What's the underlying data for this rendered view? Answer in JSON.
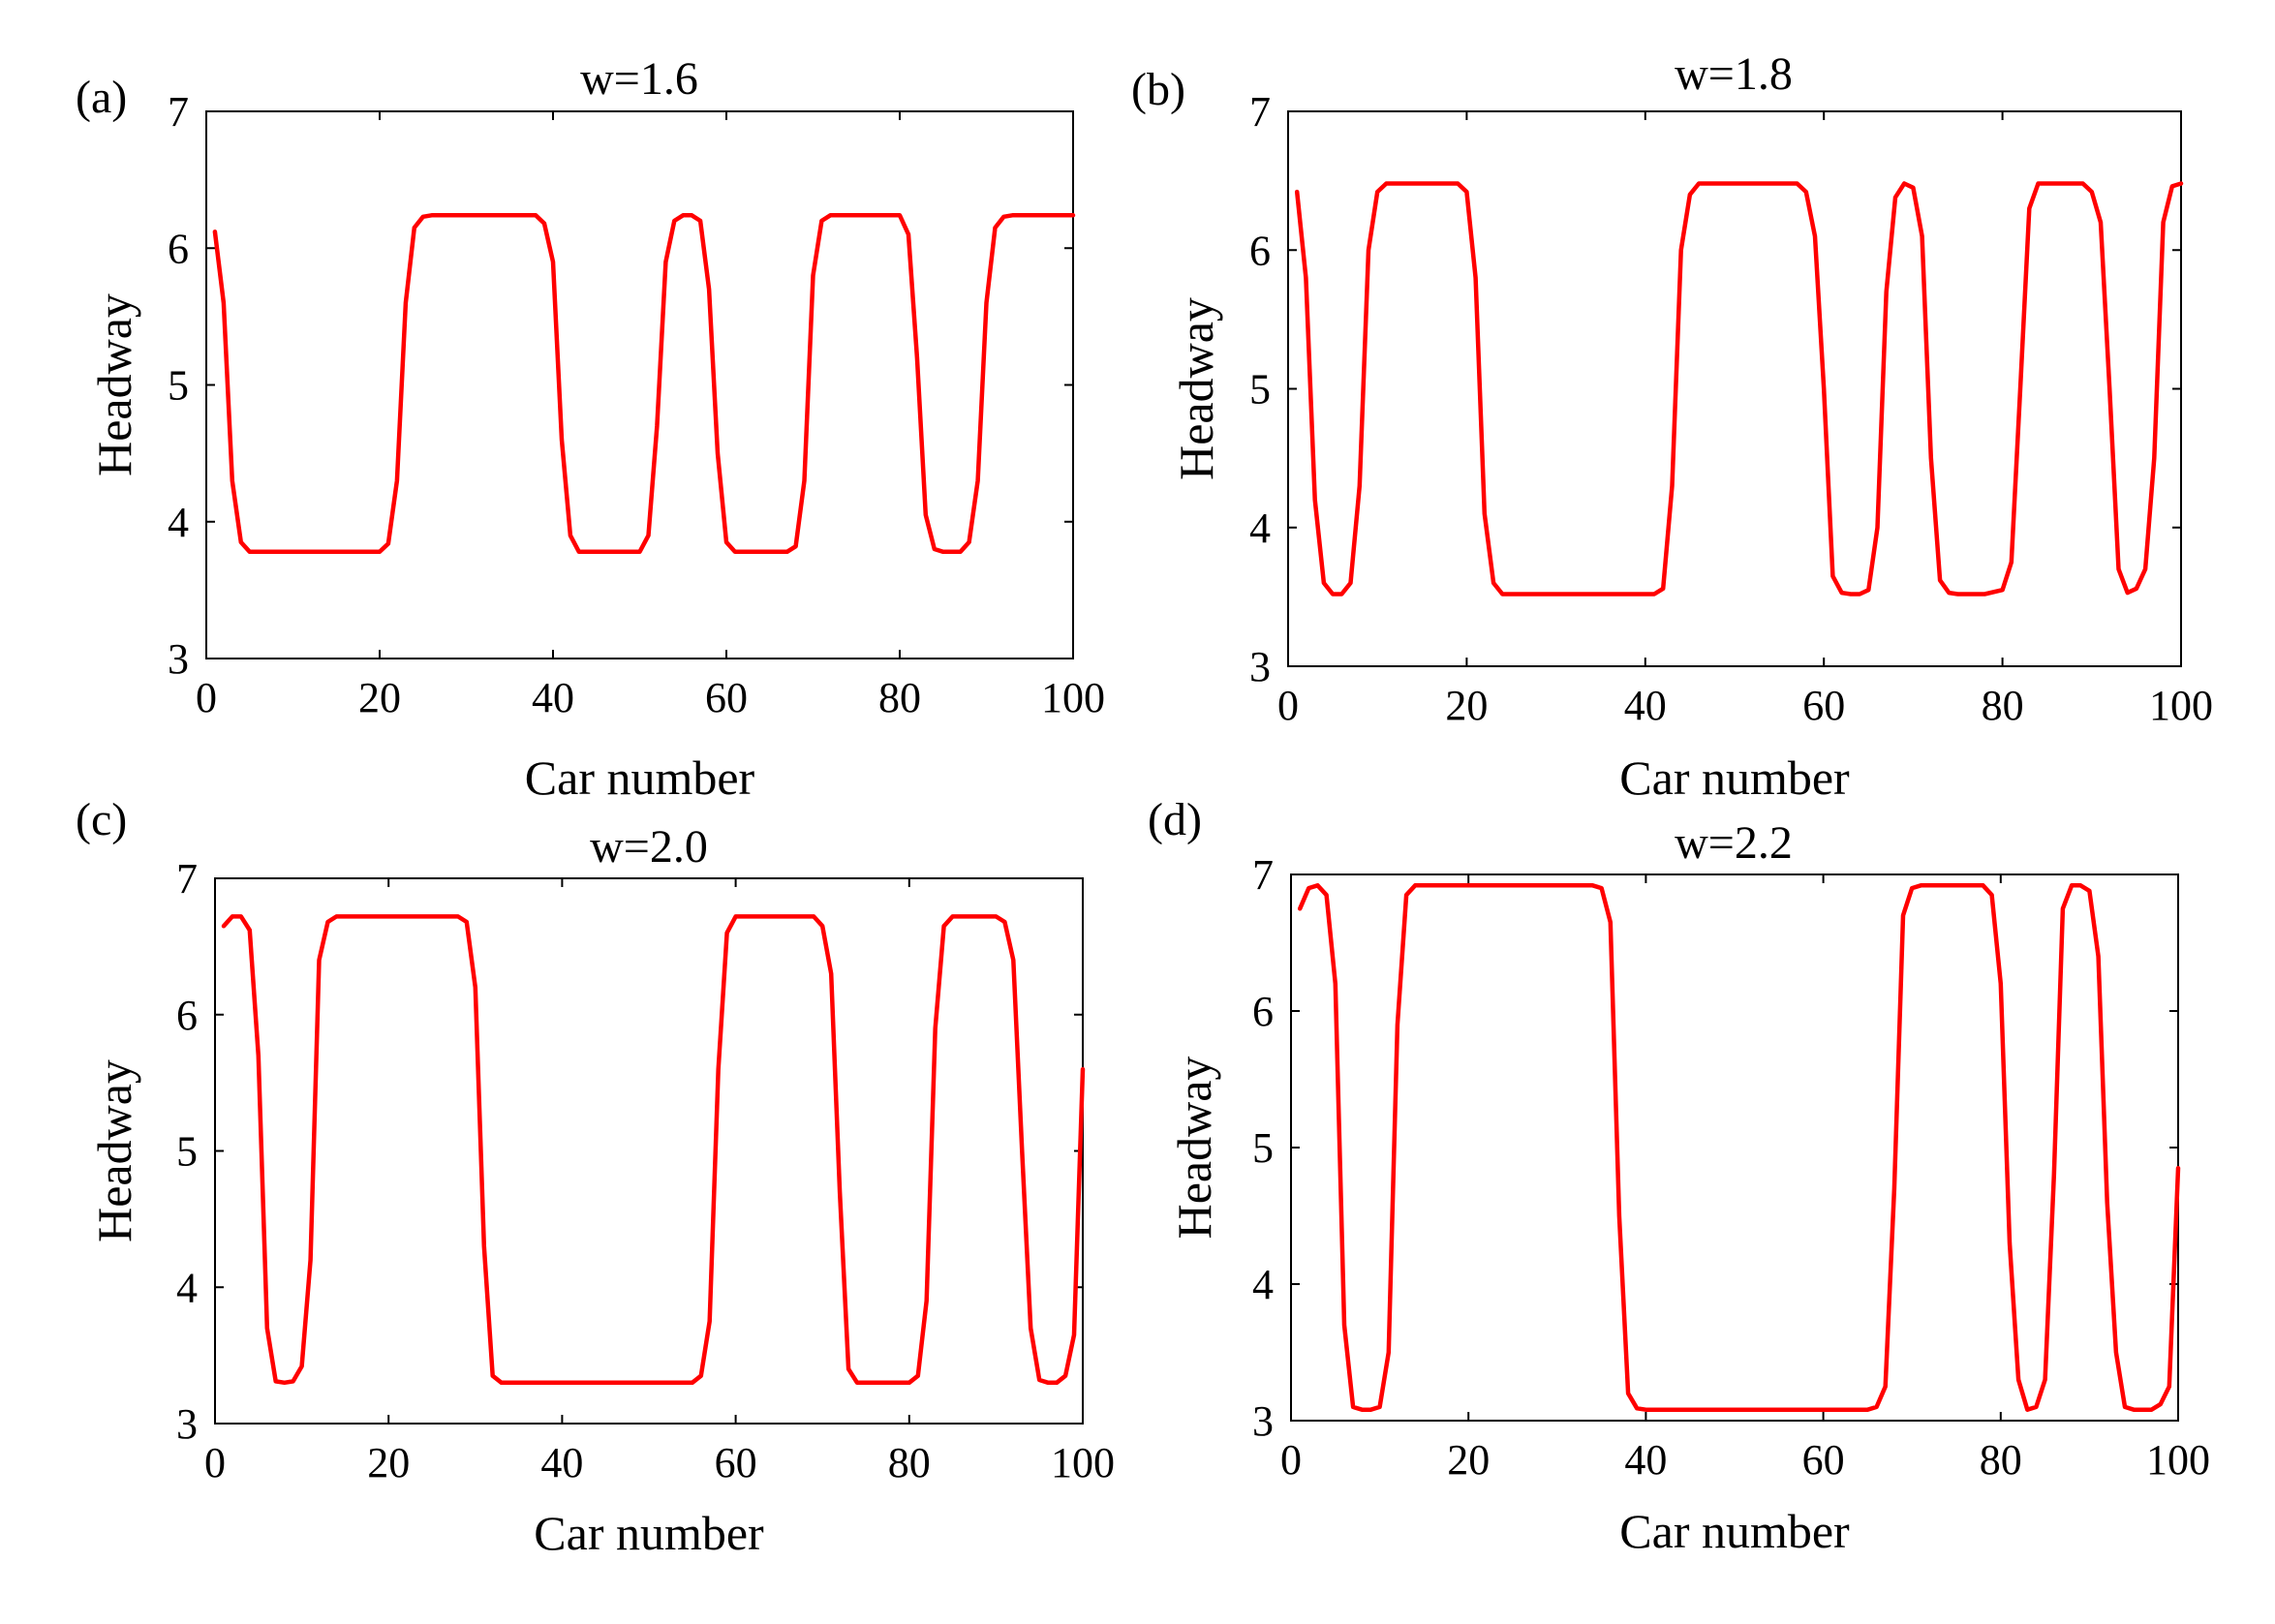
{
  "figure": {
    "line_color": "#ff0000"
  },
  "chart_data": [
    {
      "type": "line",
      "panel_label": "(a)",
      "title": "w=1.6",
      "xlabel": "Car number",
      "ylabel": "Headway",
      "xlim": [
        0,
        100
      ],
      "ylim": [
        3,
        7
      ],
      "xticks": [
        0,
        20,
        40,
        60,
        80,
        100
      ],
      "yticks": [
        3,
        4,
        5,
        6,
        7
      ],
      "xtick_labels": [
        "0",
        "20",
        "40",
        "60",
        "80",
        "100"
      ],
      "ytick_labels": [
        "3",
        "4",
        "5",
        "6",
        "7"
      ],
      "grid": false,
      "series": [
        {
          "name": "headway",
          "x": [
            1,
            2,
            3,
            4,
            5,
            6,
            20,
            21,
            22,
            23,
            24,
            25,
            26,
            38,
            39,
            40,
            41,
            42,
            43,
            44,
            50,
            51,
            52,
            53,
            54,
            55,
            56,
            57,
            58,
            59,
            60,
            61,
            67,
            68,
            69,
            70,
            71,
            72,
            80,
            81,
            82,
            83,
            84,
            85,
            86,
            87,
            88,
            89,
            90,
            91,
            92,
            93,
            100
          ],
          "values": [
            6.12,
            5.6,
            4.3,
            3.85,
            3.78,
            3.78,
            3.78,
            3.84,
            4.3,
            5.6,
            6.15,
            6.23,
            6.24,
            6.24,
            6.18,
            5.9,
            4.6,
            3.9,
            3.78,
            3.78,
            3.78,
            3.9,
            4.7,
            5.9,
            6.2,
            6.24,
            6.24,
            6.2,
            5.7,
            4.5,
            3.85,
            3.78,
            3.78,
            3.82,
            4.3,
            5.8,
            6.2,
            6.24,
            6.24,
            6.1,
            5.2,
            4.05,
            3.8,
            3.78,
            3.78,
            3.78,
            3.85,
            4.3,
            5.6,
            6.15,
            6.23,
            6.24,
            6.24
          ]
        }
      ]
    },
    {
      "type": "line",
      "panel_label": "(b)",
      "title": "w=1.8",
      "xlabel": "Car number",
      "ylabel": "Headway",
      "xlim": [
        0,
        100
      ],
      "ylim": [
        3,
        7
      ],
      "xticks": [
        0,
        20,
        40,
        60,
        80,
        100
      ],
      "yticks": [
        3,
        4,
        5,
        6,
        7
      ],
      "xtick_labels": [
        "0",
        "20",
        "40",
        "60",
        "80",
        "100"
      ],
      "ytick_labels": [
        "3",
        "4",
        "5",
        "6",
        "7"
      ],
      "grid": false,
      "series": [
        {
          "name": "headway",
          "x": [
            1,
            2,
            3,
            4,
            5,
            6,
            7,
            8,
            9,
            10,
            11,
            19,
            20,
            21,
            22,
            23,
            24,
            25,
            41,
            42,
            43,
            44,
            45,
            46,
            57,
            58,
            59,
            60,
            61,
            62,
            63,
            64,
            65,
            66,
            67,
            68,
            69,
            70,
            71,
            72,
            73,
            74,
            75,
            76,
            78,
            80,
            81,
            82,
            83,
            84,
            89,
            90,
            91,
            92,
            93,
            94,
            95,
            96,
            97,
            98,
            99,
            100
          ],
          "values": [
            6.42,
            5.8,
            4.2,
            3.6,
            3.52,
            3.52,
            3.6,
            4.3,
            6.0,
            6.42,
            6.48,
            6.48,
            6.42,
            5.8,
            4.1,
            3.6,
            3.52,
            3.52,
            3.52,
            3.56,
            4.3,
            6.0,
            6.4,
            6.48,
            6.48,
            6.42,
            6.1,
            5.0,
            3.65,
            3.53,
            3.52,
            3.52,
            3.55,
            4.0,
            5.7,
            6.38,
            6.48,
            6.45,
            6.1,
            4.5,
            3.62,
            3.53,
            3.52,
            3.52,
            3.52,
            3.55,
            3.75,
            5.0,
            6.3,
            6.48,
            6.48,
            6.42,
            6.2,
            5.0,
            3.7,
            3.53,
            3.56,
            3.7,
            4.5,
            6.2,
            6.46,
            6.48
          ]
        }
      ]
    },
    {
      "type": "line",
      "panel_label": "(c)",
      "title": "w=2.0",
      "xlabel": "Car number",
      "ylabel": "Headway",
      "xlim": [
        0,
        100
      ],
      "ylim": [
        3,
        7
      ],
      "xticks": [
        0,
        20,
        40,
        60,
        80,
        100
      ],
      "yticks": [
        3,
        4,
        5,
        6,
        7
      ],
      "xtick_labels": [
        "0",
        "20",
        "40",
        "60",
        "80",
        "100"
      ],
      "ytick_labels": [
        "3",
        "4",
        "5",
        "6",
        "7"
      ],
      "grid": false,
      "series": [
        {
          "name": "headway",
          "x": [
            1,
            2,
            3,
            4,
            5,
            6,
            7,
            8,
            9,
            10,
            11,
            12,
            13,
            14,
            28,
            29,
            30,
            31,
            32,
            33,
            34,
            55,
            56,
            57,
            58,
            59,
            60,
            61,
            69,
            70,
            71,
            72,
            73,
            74,
            75,
            80,
            81,
            82,
            83,
            84,
            85,
            86,
            90,
            91,
            92,
            93,
            94,
            95,
            96,
            97,
            98,
            99,
            100
          ],
          "values": [
            6.65,
            6.72,
            6.72,
            6.62,
            5.7,
            3.7,
            3.31,
            3.3,
            3.31,
            3.42,
            4.2,
            6.4,
            6.68,
            6.72,
            6.72,
            6.68,
            6.2,
            4.3,
            3.35,
            3.3,
            3.3,
            3.3,
            3.35,
            3.75,
            5.6,
            6.6,
            6.72,
            6.72,
            6.72,
            6.65,
            6.3,
            4.7,
            3.4,
            3.3,
            3.3,
            3.3,
            3.35,
            3.9,
            5.9,
            6.65,
            6.72,
            6.72,
            6.72,
            6.68,
            6.4,
            5.0,
            3.7,
            3.32,
            3.3,
            3.3,
            3.35,
            3.65,
            5.6
          ]
        }
      ]
    },
    {
      "type": "line",
      "panel_label": "(d)",
      "title": "w=2.2",
      "xlabel": "Car number",
      "ylabel": "Headway",
      "xlim": [
        0,
        100
      ],
      "ylim": [
        3,
        7
      ],
      "xticks": [
        0,
        20,
        40,
        60,
        80,
        100
      ],
      "yticks": [
        3,
        4,
        5,
        6,
        7
      ],
      "xtick_labels": [
        "0",
        "20",
        "40",
        "60",
        "80",
        "100"
      ],
      "ytick_labels": [
        "3",
        "4",
        "5",
        "6",
        "7"
      ],
      "grid": false,
      "series": [
        {
          "name": "headway",
          "x": [
            1,
            2,
            3,
            4,
            5,
            6,
            7,
            8,
            9,
            10,
            11,
            12,
            13,
            14,
            34,
            35,
            36,
            37,
            38,
            39,
            40,
            65,
            66,
            67,
            68,
            69,
            70,
            71,
            78,
            79,
            80,
            81,
            82,
            83,
            84,
            85,
            86,
            87,
            88,
            89,
            90,
            91,
            92,
            93,
            94,
            95,
            96,
            97,
            98,
            99,
            100
          ],
          "values": [
            6.75,
            6.9,
            6.92,
            6.85,
            6.2,
            3.7,
            3.1,
            3.08,
            3.08,
            3.1,
            3.5,
            5.9,
            6.85,
            6.92,
            6.92,
            6.9,
            6.65,
            4.5,
            3.2,
            3.09,
            3.08,
            3.08,
            3.1,
            3.25,
            4.7,
            6.7,
            6.9,
            6.92,
            6.92,
            6.85,
            6.2,
            4.3,
            3.3,
            3.08,
            3.1,
            3.3,
            4.8,
            6.75,
            6.92,
            6.92,
            6.88,
            6.4,
            4.6,
            3.5,
            3.1,
            3.08,
            3.08,
            3.08,
            3.12,
            3.25,
            4.85
          ]
        }
      ]
    }
  ]
}
